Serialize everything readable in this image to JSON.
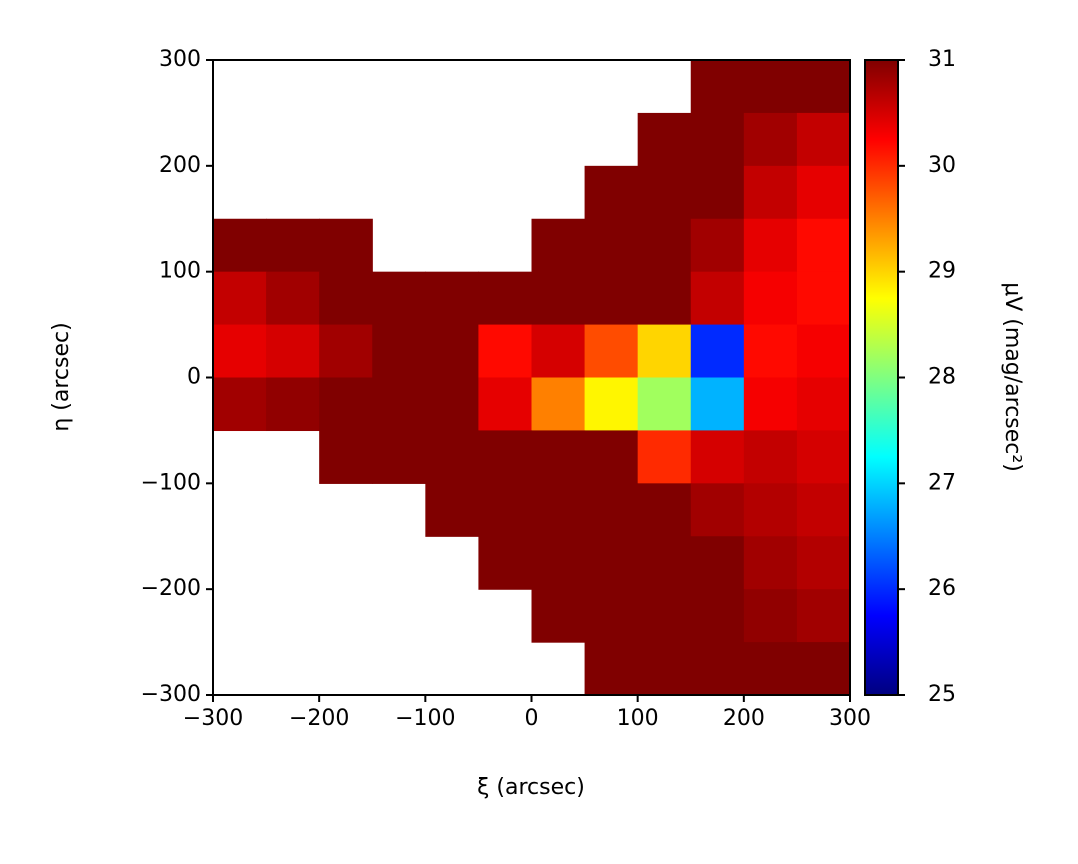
{
  "chart_data": {
    "type": "heatmap",
    "xlabel": "ξ (arcsec)",
    "ylabel": "η (arcsec)",
    "colorbar_label": "μV (mag/arcsec²)",
    "colormap": "jet",
    "x": [
      -275,
      -225,
      -175,
      -125,
      -75,
      -25,
      25,
      75,
      125,
      175,
      225,
      275
    ],
    "y": [
      275,
      225,
      175,
      125,
      75,
      25,
      -25,
      -75,
      -125,
      -175,
      -225,
      -275
    ],
    "z": [
      [
        null,
        null,
        null,
        null,
        null,
        null,
        null,
        null,
        null,
        31,
        31,
        31
      ],
      [
        null,
        null,
        null,
        null,
        null,
        null,
        null,
        null,
        31,
        31,
        30.8,
        30.6
      ],
      [
        null,
        null,
        null,
        null,
        null,
        null,
        null,
        31,
        31,
        31,
        30.6,
        30.4
      ],
      [
        31,
        31,
        31,
        null,
        null,
        null,
        31,
        31,
        31,
        30.8,
        30.4,
        30.2
      ],
      [
        30.6,
        30.8,
        31,
        31,
        31,
        31,
        31,
        31,
        31,
        30.6,
        30.3,
        30.2
      ],
      [
        30.4,
        30.5,
        30.8,
        31,
        31,
        30.2,
        30.5,
        29.8,
        29,
        26,
        30.2,
        30.3
      ],
      [
        30.8,
        30.9,
        31,
        31,
        31,
        30.4,
        29.5,
        28.8,
        28.2,
        26.8,
        30.3,
        30.4
      ],
      [
        null,
        null,
        31,
        31,
        31,
        31,
        31,
        31,
        30,
        30.5,
        30.6,
        30.5
      ],
      [
        null,
        null,
        null,
        null,
        31,
        31,
        31,
        31,
        31,
        30.8,
        30.7,
        30.6
      ],
      [
        null,
        null,
        null,
        null,
        null,
        31,
        31,
        31,
        31,
        31,
        30.8,
        30.7
      ],
      [
        null,
        null,
        null,
        null,
        null,
        null,
        31,
        31,
        31,
        31,
        30.9,
        30.8
      ],
      [
        null,
        null,
        null,
        null,
        null,
        null,
        null,
        31,
        31,
        31,
        31,
        31
      ]
    ],
    "xlim": [
      -300,
      300
    ],
    "ylim": [
      -300,
      300
    ],
    "clim": [
      25,
      31
    ],
    "xticks": [
      {
        "value": -300,
        "label": "−300"
      },
      {
        "value": -200,
        "label": "−200"
      },
      {
        "value": -100,
        "label": "−100"
      },
      0,
      100,
      200,
      300
    ],
    "yticks": [
      {
        "value": -300,
        "label": "−300"
      },
      {
        "value": -200,
        "label": "−200"
      },
      {
        "value": -100,
        "label": "−100"
      },
      0,
      100,
      200,
      300
    ],
    "cticks": [
      25,
      26,
      27,
      28,
      29,
      30,
      31
    ]
  }
}
